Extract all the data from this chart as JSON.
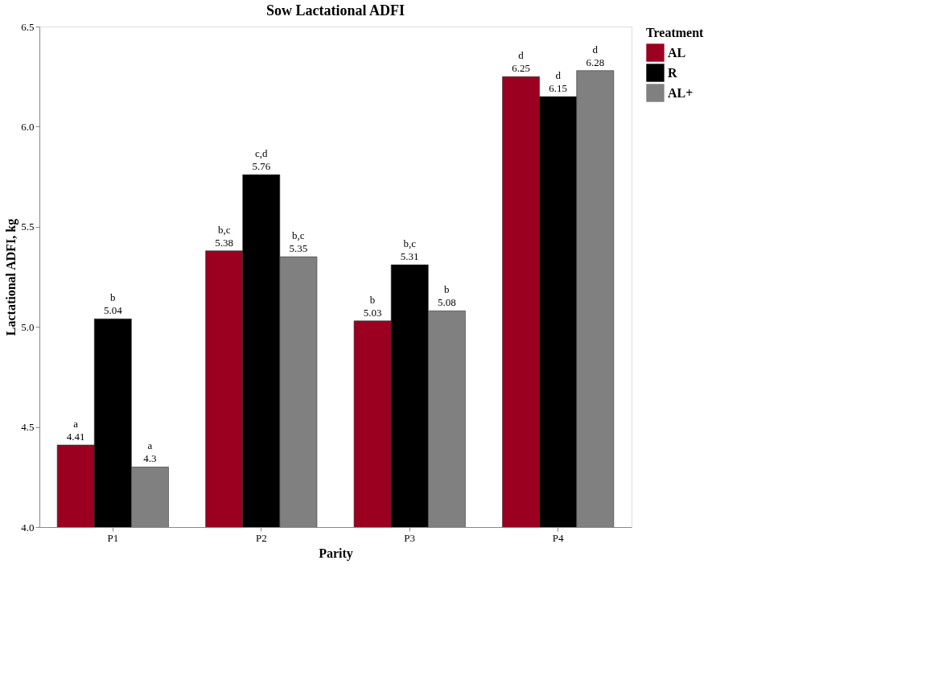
{
  "chart_data": {
    "type": "bar",
    "title": "Sow Lactational ADFI",
    "xlabel": "Parity",
    "ylabel": "Lactational ADFI, kg",
    "legend_title": "Treatment",
    "legend": "right",
    "categories": [
      "P1",
      "P2",
      "P3",
      "P4"
    ],
    "series": [
      {
        "name": "AL",
        "color": "#9b0020",
        "values": [
          4.41,
          5.38,
          5.03,
          6.25
        ],
        "value_labels": [
          "a\n4.41",
          "b,c\n5.38",
          "b\n5.03",
          "d\n6.25"
        ]
      },
      {
        "name": "R",
        "color": "#000000",
        "values": [
          5.04,
          5.76,
          5.31,
          6.15
        ],
        "value_labels": [
          "b\n5.04",
          "c,d\n5.76",
          "b,c\n5.31",
          "d\n6.15"
        ]
      },
      {
        "name": "AL+",
        "color": "#808080",
        "values": [
          4.3,
          5.35,
          5.08,
          6.28
        ],
        "value_labels": [
          "a\n4.3",
          "b,c\n5.35",
          "b\n5.08",
          "d\n6.28"
        ]
      }
    ],
    "ylim": [
      4.0,
      6.5
    ],
    "yticks": [
      {
        "value": 4,
        "label": "4.0"
      },
      {
        "value": 4.5,
        "label": "4.5"
      },
      {
        "value": 5,
        "label": "5.0"
      },
      {
        "value": 5.5,
        "label": "5.5"
      },
      {
        "value": 6,
        "label": "6.0"
      },
      {
        "value": 6.5,
        "label": "6.5"
      }
    ],
    "grid": false
  }
}
